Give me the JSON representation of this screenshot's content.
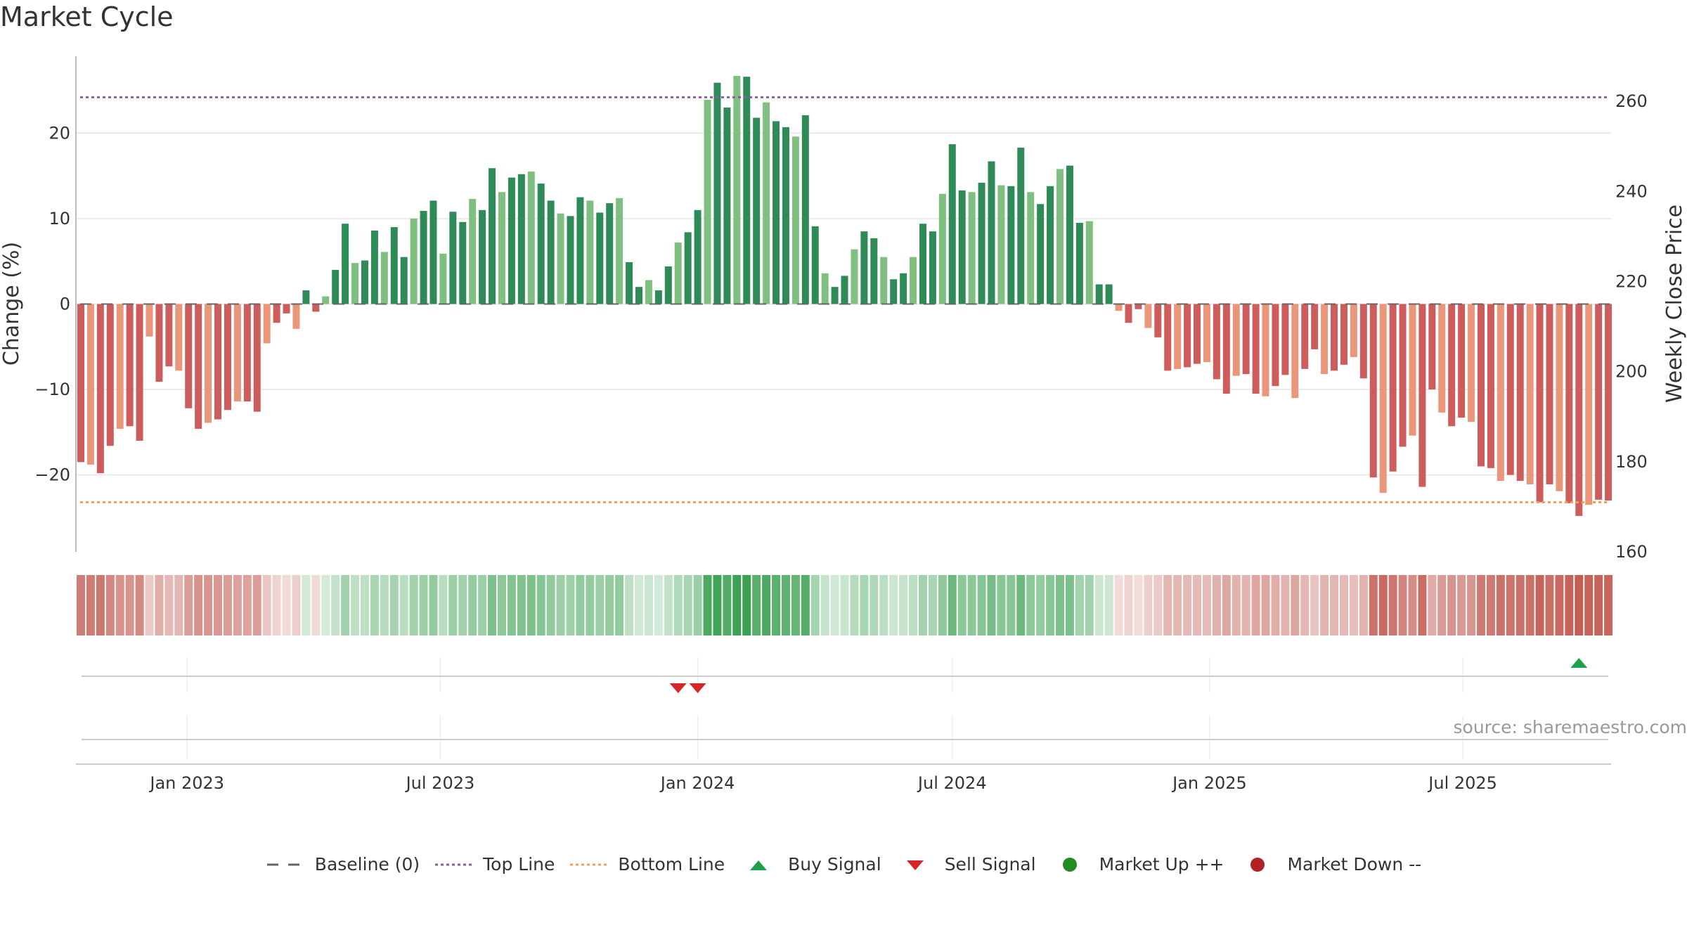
{
  "title": "Market Cycle",
  "source": "source: sharemaestro.com",
  "chart_data": {
    "type": "bar",
    "title": "Market Cycle",
    "ylabel": "Change (%)",
    "y2label": "Weekly Close Price",
    "ylim": [
      -29,
      29
    ],
    "y2lim": [
      160,
      270
    ],
    "yticks": [
      "20",
      "10",
      "0",
      "−10",
      "−20"
    ],
    "ytick_values": [
      20,
      10,
      0,
      -10,
      -20
    ],
    "y2ticks": [
      "260",
      "240",
      "220",
      "200",
      "180",
      "160"
    ],
    "y2tick_values": [
      260,
      240,
      220,
      200,
      180,
      160
    ],
    "xticks": [
      "Jan 2023",
      "Jul 2023",
      "Jan 2024",
      "Jul 2024",
      "Jan 2025",
      "Jul 2025"
    ],
    "xtick_dates": [
      "2023-01-01",
      "2023-07-01",
      "2024-01-01",
      "2024-07-01",
      "2025-01-01",
      "2025-07-01"
    ],
    "start_week": "2022-10-17",
    "top_line": 24.2,
    "bottom_line": -23.2,
    "values": [
      -18.5,
      -18.8,
      -19.8,
      -16.6,
      -14.6,
      -14.3,
      -16,
      -3.8,
      -9.1,
      -7.3,
      -7.8,
      -12.2,
      -14.6,
      -13.9,
      -13.5,
      -12.4,
      -11.4,
      -11.4,
      -12.6,
      -4.6,
      -2.2,
      -1.1,
      -2.9,
      1.6,
      -0.9,
      0.9,
      4,
      9.4,
      4.8,
      5.1,
      8.6,
      6.1,
      9,
      5.5,
      10,
      10.9,
      12.1,
      5.9,
      10.8,
      9.6,
      12.3,
      11,
      15.9,
      13.1,
      14.8,
      15.2,
      15.5,
      14.1,
      12.1,
      10.6,
      10.3,
      12.5,
      12.1,
      10.7,
      11.8,
      12.4,
      4.9,
      2,
      2.8,
      1.6,
      4.4,
      7.2,
      8.4,
      11,
      23.9,
      25.9,
      23,
      26.7,
      26.6,
      21.8,
      23.6,
      21.4,
      20.7,
      19.6,
      22.1,
      9.1,
      3.6,
      2,
      3.3,
      6.4,
      8.5,
      7.7,
      5.5,
      2.9,
      3.6,
      5.5,
      9.4,
      8.5,
      12.9,
      18.7,
      13.3,
      13.1,
      14.2,
      16.7,
      13.9,
      13.8,
      18.3,
      13.1,
      11.7,
      13.8,
      15.8,
      16.2,
      9.5,
      9.7,
      2.3,
      2.3,
      -0.8,
      -2.2,
      -0.6,
      -2.8,
      -3.9,
      -7.8,
      -7.6,
      -7.4,
      -7,
      -6.8,
      -8.8,
      -10.5,
      -8.4,
      -8.2,
      -10.5,
      -10.8,
      -9.6,
      -8.3,
      -11,
      -7.6,
      -5.3,
      -8.2,
      -7.8,
      -7.1,
      -6.2,
      -8.7,
      -20.3,
      -22.1,
      -19.6,
      -16.7,
      -15.4,
      -21.4,
      -10,
      -12.7,
      -14.3,
      -13.3,
      -13.8,
      -19,
      -19.2,
      -20.7,
      -20,
      -20.7,
      -21.1,
      -23.2,
      -21.1,
      -21.9,
      -23.3,
      -24.8,
      -23.5,
      -22.9,
      -23
    ],
    "heat_strip": "per-week colour intensity band (no numeric labels)",
    "signals": {
      "sell": [
        "2023-12-18",
        "2024-01-01"
      ],
      "buy": [
        "2025-09-22"
      ]
    },
    "colors": {
      "up_dark": "#2e8b57",
      "up_light": "#7fbf7f",
      "down_dark": "#cd5c5c",
      "down_light": "#e9967a",
      "top_line": "#8e5ea2",
      "bottom_line": "#f0a050",
      "buy": "#1fa050",
      "sell": "#d62728",
      "market_up": "#228b22",
      "market_down": "#b22222",
      "baseline": "#666666"
    },
    "legend_position": "bottom-center"
  },
  "legend": [
    {
      "label": "Baseline (0)",
      "kind": "dash",
      "color": "#666666"
    },
    {
      "label": "Top Line",
      "kind": "dot",
      "color": "#8e5ea2"
    },
    {
      "label": "Bottom Line",
      "kind": "dot",
      "color": "#f0a050"
    },
    {
      "label": "Buy Signal",
      "kind": "tri-up",
      "color": "#1fa050"
    },
    {
      "label": "Sell Signal",
      "kind": "tri-down",
      "color": "#d62728"
    },
    {
      "label": "Market Up ++",
      "kind": "circle",
      "color": "#228b22"
    },
    {
      "label": "Market Down --",
      "kind": "circle",
      "color": "#b22222"
    }
  ]
}
